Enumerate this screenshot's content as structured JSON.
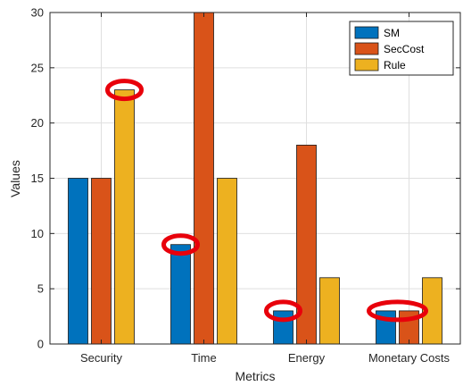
{
  "chart_data": {
    "type": "bar",
    "categories": [
      "Security",
      "Time",
      "Energy",
      "Monetary Costs"
    ],
    "series": [
      {
        "name": "SM",
        "color": "#0072BD",
        "values": [
          15,
          9,
          3,
          3
        ]
      },
      {
        "name": "SecCost",
        "color": "#D95319",
        "values": [
          15,
          30,
          18,
          3
        ]
      },
      {
        "name": "Rule",
        "color": "#EDB120",
        "values": [
          23,
          15,
          6,
          6
        ]
      }
    ],
    "xlabel": "Metrics",
    "ylabel": "Values",
    "ylim": [
      0,
      30
    ],
    "yticks": [
      0,
      5,
      10,
      15,
      20,
      25,
      30
    ],
    "grid": true,
    "legend_position": "top-right",
    "annotations": [
      {
        "type": "circle",
        "series": "Rule",
        "category": "Security",
        "value": 23,
        "color": "#E8000B"
      },
      {
        "type": "circle",
        "series": "SM",
        "category": "Time",
        "value": 9,
        "color": "#E8000B"
      },
      {
        "type": "circle",
        "series": "SM",
        "category": "Energy",
        "value": 3,
        "color": "#E8000B"
      },
      {
        "type": "circle",
        "series": [
          "SM",
          "SecCost"
        ],
        "category": "Monetary Costs",
        "value": 3,
        "color": "#E8000B"
      }
    ]
  }
}
